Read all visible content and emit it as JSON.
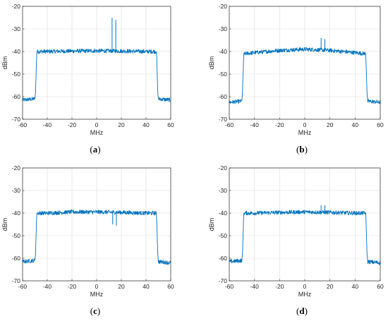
{
  "chart_data": [
    {
      "type": "line",
      "panel": "a",
      "caption": {
        "open": "(",
        "letter": "a",
        "close": ")"
      },
      "xlabel": "MHz",
      "ylabel": "dBm",
      "xlim": [
        -60,
        60
      ],
      "ylim": [
        -70,
        -20
      ],
      "xticks": [
        -60,
        -40,
        -20,
        0,
        20,
        40,
        60
      ],
      "yticks": [
        -20,
        -30,
        -40,
        -50,
        -60,
        -70
      ],
      "grid": true,
      "color": "#0072BD",
      "series": [
        {
          "x": [
            -60,
            -50,
            -49.5,
            -48.5,
            -40,
            -20,
            0,
            20,
            40,
            48.5,
            49.5,
            50,
            60
          ],
          "y": [
            -61.5,
            -61,
            -58,
            -40,
            -40,
            -39.8,
            -39.7,
            -39.8,
            -40,
            -40,
            -58,
            -61,
            -61.5
          ]
        }
      ],
      "spikes": [
        {
          "x": 12.5,
          "y": -25
        },
        {
          "x": 15.5,
          "y": -26
        }
      ]
    },
    {
      "type": "line",
      "panel": "b",
      "caption": {
        "open": "(",
        "letter": "b",
        "close": ")"
      },
      "xlabel": "MHz",
      "ylabel": "dBm",
      "xlim": [
        -60,
        60
      ],
      "ylim": [
        -70,
        -20
      ],
      "xticks": [
        -60,
        -40,
        -20,
        0,
        20,
        40,
        60
      ],
      "yticks": [
        -20,
        -30,
        -40,
        -50,
        -60,
        -70
      ],
      "grid": true,
      "color": "#0072BD",
      "series": [
        {
          "x": [
            -60,
            -50,
            -49.5,
            -48.5,
            -40,
            -20,
            0,
            20,
            40,
            48.5,
            49.5,
            50,
            60
          ],
          "y": [
            -62.5,
            -62,
            -58,
            -41,
            -40.5,
            -39.5,
            -39,
            -39.5,
            -40.5,
            -41,
            -58,
            -62,
            -62.5
          ]
        }
      ],
      "spikes": [
        {
          "x": 13,
          "y": -34
        },
        {
          "x": 16,
          "y": -34.5
        }
      ]
    },
    {
      "type": "line",
      "panel": "c",
      "caption": {
        "open": "(",
        "letter": "c",
        "close": ")"
      },
      "xlabel": "MHz",
      "ylabel": "dBm",
      "xlim": [
        -60,
        60
      ],
      "ylim": [
        -70,
        -20
      ],
      "xticks": [
        -60,
        -40,
        -20,
        0,
        20,
        40,
        60
      ],
      "yticks": [
        -20,
        -30,
        -40,
        -50,
        -60,
        -70
      ],
      "grid": true,
      "color": "#0072BD",
      "series": [
        {
          "x": [
            -60,
            -50,
            -49.5,
            -48.5,
            -40,
            -20,
            0,
            20,
            40,
            48.5,
            49.5,
            50,
            60
          ],
          "y": [
            -61.5,
            -61,
            -58,
            -40,
            -40,
            -39.5,
            -39.5,
            -39.7,
            -40,
            -40,
            -58,
            -61.5,
            -62
          ]
        }
      ],
      "spikes": [
        {
          "x": 13,
          "y": -45
        },
        {
          "x": 16,
          "y": -45.5
        }
      ]
    },
    {
      "type": "line",
      "panel": "d",
      "caption": {
        "open": "(",
        "letter": "d",
        "close": ")"
      },
      "xlabel": "MHz",
      "ylabel": "dBm",
      "xlim": [
        -60,
        60
      ],
      "ylim": [
        -70,
        -20
      ],
      "xticks": [
        -60,
        -40,
        -20,
        0,
        20,
        40,
        60
      ],
      "yticks": [
        -20,
        -30,
        -40,
        -50,
        -60,
        -70
      ],
      "grid": true,
      "color": "#0072BD",
      "series": [
        {
          "x": [
            -60,
            -50,
            -49.5,
            -48.5,
            -40,
            -20,
            0,
            20,
            40,
            48.5,
            49.5,
            50,
            60
          ],
          "y": [
            -61.5,
            -61,
            -58,
            -40,
            -40,
            -39.7,
            -39.5,
            -39.7,
            -40,
            -40,
            -58,
            -61.5,
            -62
          ]
        }
      ],
      "spikes": [
        {
          "x": 13,
          "y": -36.5
        },
        {
          "x": 16,
          "y": -36.5
        }
      ]
    }
  ]
}
